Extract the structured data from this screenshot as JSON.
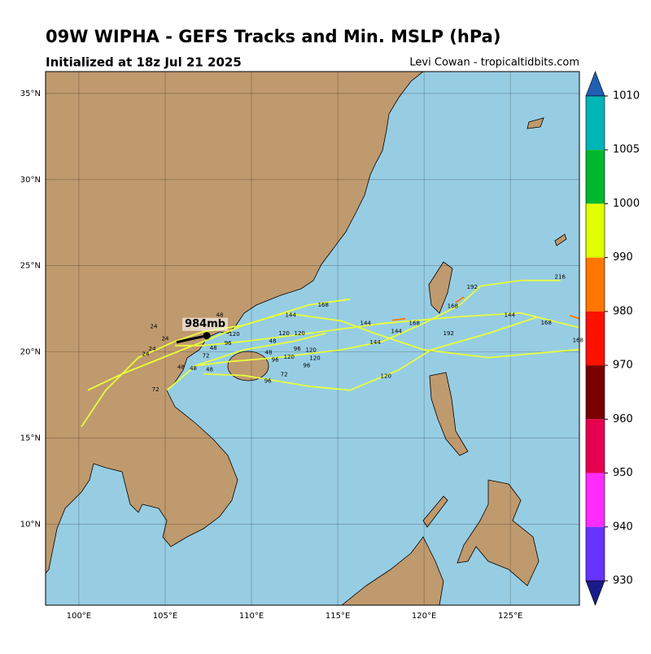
{
  "title": "09W WIPHA - GEFS Tracks and Min. MSLP (hPa)",
  "subtitle": "Initialized at 18z Jul 21 2025",
  "credit": "Levi Cowan - tropicaltidbits.com",
  "map": {
    "lonlim": [
      98.07,
      129.0
    ],
    "latlim": [
      5.3,
      36.27
    ],
    "lonticks": [
      {
        "value": 100,
        "label": "100°E"
      },
      {
        "value": 105,
        "label": "105°E"
      },
      {
        "value": 110,
        "label": "110°E"
      },
      {
        "value": 115,
        "label": "115°E"
      },
      {
        "value": 120,
        "label": "120°E"
      },
      {
        "value": 125,
        "label": "125°E"
      }
    ],
    "latticks": [
      {
        "value": 10,
        "label": "10°N"
      },
      {
        "value": 15,
        "label": "15°N"
      },
      {
        "value": 20,
        "label": "20°N"
      },
      {
        "value": 25,
        "label": "25°N"
      },
      {
        "value": 30,
        "label": "30°N"
      },
      {
        "value": 35,
        "label": "35°N"
      }
    ],
    "land_color": "#bf9a6e",
    "ocean_color": "#97cde3"
  },
  "colorbar": {
    "levels": [
      1010,
      1005,
      1000,
      990,
      980,
      970,
      960,
      950,
      940,
      930
    ],
    "colors": [
      "#00b5b8",
      "#00b82e",
      "#e0ff00",
      "#ff7700",
      "#ff1100",
      "#7a0000",
      "#e6004f",
      "#ff2bff",
      "#6633ff"
    ],
    "over_color": "#1f5fb4",
    "under_color": "#1a1a8a"
  },
  "tracks": [
    {
      "color": "#e8ff3a",
      "points": [
        [
          129.0,
          21.41
        ],
        [
          125.6,
          22.26
        ],
        [
          121.84,
          22.03
        ],
        [
          117.6,
          21.65
        ],
        [
          113.35,
          21.08
        ],
        [
          109.58,
          20.61
        ],
        [
          107.22,
          20.37
        ],
        [
          105.57,
          20.37
        ]
      ]
    },
    {
      "color": "#e8ff3a",
      "points": [
        [
          127.9,
          24.15
        ],
        [
          125.6,
          24.15
        ],
        [
          123.26,
          23.82
        ],
        [
          122.08,
          22.73
        ],
        [
          119.96,
          21.65
        ],
        [
          117.6,
          20.61
        ],
        [
          115.24,
          20.13
        ],
        [
          111.47,
          19.67
        ],
        [
          108.64,
          19.43
        ],
        [
          106.75,
          19.2
        ]
      ]
    },
    {
      "color": "#e8ff3a",
      "points": [
        [
          129.0,
          20.14
        ],
        [
          123.73,
          19.67
        ],
        [
          119.96,
          20.13
        ],
        [
          117.13,
          21.08
        ],
        [
          115.24,
          21.79
        ],
        [
          111.94,
          22.26
        ],
        [
          109.58,
          21.56
        ],
        [
          107.22,
          20.61
        ]
      ]
    },
    {
      "color": "#e8ff3a",
      "points": [
        [
          107.22,
          18.72
        ],
        [
          109.58,
          18.63
        ],
        [
          113.35,
          18.0
        ],
        [
          115.71,
          17.78
        ],
        [
          118.54,
          18.96
        ],
        [
          120.43,
          20.13
        ],
        [
          123.73,
          21.08
        ],
        [
          126.56,
          22.02
        ]
      ]
    },
    {
      "color": "#e8ff3a",
      "points": [
        [
          100.15,
          15.66
        ],
        [
          101.56,
          17.78
        ],
        [
          103.45,
          19.67
        ],
        [
          105.57,
          20.61
        ]
      ]
    },
    {
      "color": "#e8ff3a",
      "points": [
        [
          100.52,
          17.78
        ],
        [
          102.5,
          18.72
        ],
        [
          104.86,
          19.67
        ],
        [
          107.22,
          20.61
        ]
      ]
    },
    {
      "color": "#e8ff3a",
      "points": [
        [
          105.1,
          17.78
        ],
        [
          106.75,
          19.2
        ],
        [
          109.58,
          20.13
        ],
        [
          112.41,
          20.61
        ],
        [
          114.3,
          21.08
        ]
      ]
    },
    {
      "color": "#e8ff3a",
      "points": [
        [
          105.57,
          20.61
        ],
        [
          107.22,
          21.18
        ],
        [
          109.58,
          21.56
        ],
        [
          113.35,
          22.73
        ],
        [
          115.71,
          23.06
        ]
      ]
    },
    {
      "color": "#ff7700",
      "points": [
        [
          121.84,
          22.87
        ],
        [
          122.31,
          23.2
        ]
      ]
    },
    {
      "color": "#ff7700",
      "points": [
        [
          118.16,
          21.84
        ],
        [
          118.92,
          21.93
        ]
      ]
    },
    {
      "color": "#ff7700",
      "points": [
        [
          128.43,
          22.12
        ],
        [
          129.0,
          21.93
        ]
      ]
    },
    {
      "color": "#000000",
      "points": [
        [
          105.66,
          20.56
        ],
        [
          106.5,
          20.75
        ],
        [
          107.41,
          20.94
        ]
      ]
    }
  ],
  "storm": {
    "label": "984mb",
    "lon": 107.41,
    "lat": 20.94
  },
  "hour_labels": [
    {
      "text": "144",
      "lon": 112.27,
      "lat": 22.12
    },
    {
      "text": "144",
      "lon": 116.61,
      "lat": 21.65
    },
    {
      "text": "144",
      "lon": 118.4,
      "lat": 21.18
    },
    {
      "text": "144",
      "lon": 117.17,
      "lat": 20.56
    },
    {
      "text": "144",
      "lon": 124.96,
      "lat": 22.12
    },
    {
      "text": "168",
      "lon": 119.44,
      "lat": 21.65
    },
    {
      "text": "168",
      "lon": 121.66,
      "lat": 22.64
    },
    {
      "text": "168",
      "lon": 127.08,
      "lat": 21.69
    },
    {
      "text": "168",
      "lon": 128.92,
      "lat": 20.66
    },
    {
      "text": "168",
      "lon": 114.16,
      "lat": 22.73
    },
    {
      "text": "192",
      "lon": 122.79,
      "lat": 23.77
    },
    {
      "text": "192",
      "lon": 121.42,
      "lat": 21.08
    },
    {
      "text": "216",
      "lon": 127.88,
      "lat": 24.34
    },
    {
      "text": "120",
      "lon": 109.01,
      "lat": 21.03
    },
    {
      "text": "120",
      "lon": 111.89,
      "lat": 21.08
    },
    {
      "text": "120",
      "lon": 112.79,
      "lat": 21.08
    },
    {
      "text": "120",
      "lon": 113.45,
      "lat": 20.09
    },
    {
      "text": "120",
      "lon": 113.68,
      "lat": 19.62
    },
    {
      "text": "120",
      "lon": 112.18,
      "lat": 19.71
    },
    {
      "text": "120",
      "lon": 117.79,
      "lat": 18.58
    },
    {
      "text": "96",
      "lon": 110.95,
      "lat": 18.3
    },
    {
      "text": "96",
      "lon": 112.65,
      "lat": 20.18
    },
    {
      "text": "96",
      "lon": 113.2,
      "lat": 19.2
    },
    {
      "text": "96",
      "lon": 111.37,
      "lat": 19.53
    },
    {
      "text": "96",
      "lon": 108.64,
      "lat": 20.51
    },
    {
      "text": "72",
      "lon": 111.89,
      "lat": 18.68
    },
    {
      "text": "72",
      "lon": 104.44,
      "lat": 17.82
    },
    {
      "text": "72",
      "lon": 107.36,
      "lat": 19.76
    },
    {
      "text": "48",
      "lon": 110.99,
      "lat": 19.95
    },
    {
      "text": "48",
      "lon": 111.23,
      "lat": 20.61
    },
    {
      "text": "48",
      "lon": 105.92,
      "lat": 19.1
    },
    {
      "text": "48",
      "lon": 107.57,
      "lat": 18.96
    },
    {
      "text": "48",
      "lon": 106.63,
      "lat": 19.05
    },
    {
      "text": "48",
      "lon": 108.16,
      "lat": 22.12
    },
    {
      "text": "48",
      "lon": 107.79,
      "lat": 20.23
    },
    {
      "text": "24",
      "lon": 104.34,
      "lat": 21.46
    },
    {
      "text": "24",
      "lon": 103.87,
      "lat": 19.86
    },
    {
      "text": "24",
      "lon": 104.25,
      "lat": 20.18
    },
    {
      "text": "24",
      "lon": 105.0,
      "lat": 20.75
    }
  ]
}
